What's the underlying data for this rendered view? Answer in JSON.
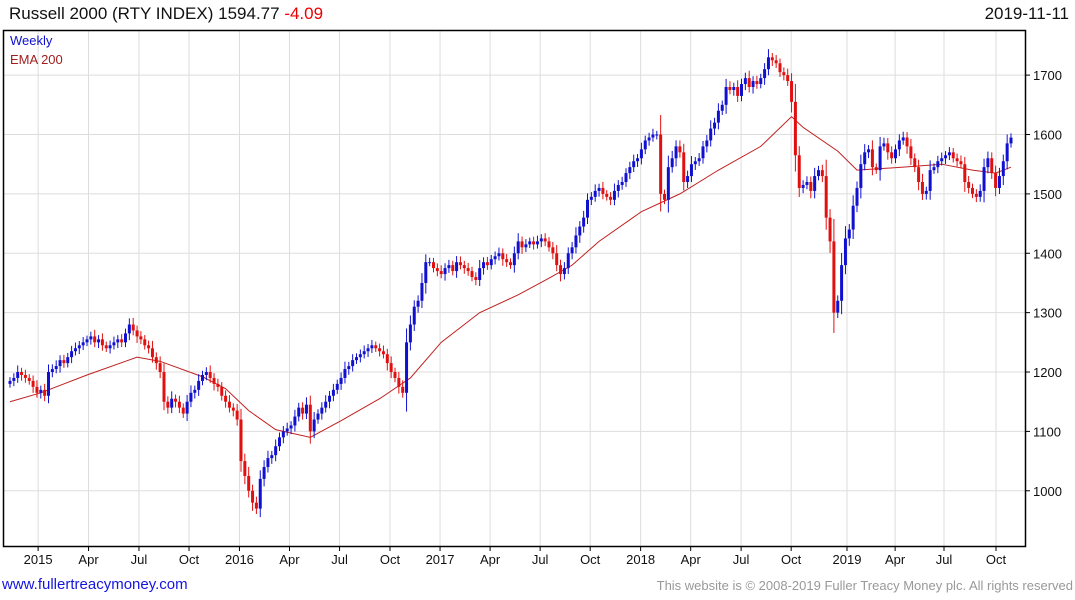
{
  "header": {
    "name": "Russell 2000 (RTY INDEX)",
    "last": "1594.77",
    "change": "-4.09",
    "date": "2019-11-11"
  },
  "footer": {
    "link": "www.fullertreacymoney.com",
    "copyright": "This website is © 2008-2019 Fuller Treacy Money plc. All rights reserved"
  },
  "colors": {
    "up": "#1010d0",
    "down": "#e01010",
    "ema": "#c02020",
    "grid": "#dddddd"
  },
  "chart_data": {
    "type": "candlestick",
    "title": "Russell 2000 (RTY INDEX) 1594.77 -4.09",
    "legend": [
      "Weekly",
      "EMA 200"
    ],
    "legend_placement": "top-left",
    "ylim": [
      907,
      1776
    ],
    "y_ticks": [
      1000,
      1100,
      1200,
      1300,
      1400,
      1500,
      1600,
      1700
    ],
    "xlim_weeks": [
      -2,
      268
    ],
    "x_ticks": [
      {
        "label": "2015",
        "week": 7.3
      },
      {
        "label": "Apr",
        "week": 20.4
      },
      {
        "label": "Jul",
        "week": 33.5
      },
      {
        "label": "Oct",
        "week": 46.5
      },
      {
        "label": "2016",
        "week": 59.6
      },
      {
        "label": "Apr",
        "week": 72.6
      },
      {
        "label": "Jul",
        "week": 85.6
      },
      {
        "label": "Oct",
        "week": 98.7
      },
      {
        "label": "2017",
        "week": 111.7
      },
      {
        "label": "Apr",
        "week": 124.7
      },
      {
        "label": "Jul",
        "week": 137.7
      },
      {
        "label": "Oct",
        "week": 150.7
      },
      {
        "label": "2018",
        "week": 163.8
      },
      {
        "label": "Apr",
        "week": 176.8
      },
      {
        "label": "Jul",
        "week": 189.9
      },
      {
        "label": "Oct",
        "week": 202.9
      },
      {
        "label": "2019",
        "week": 217.4
      },
      {
        "label": "Apr",
        "week": 229.9
      },
      {
        "label": "Jul",
        "week": 242.6
      },
      {
        "label": "Oct",
        "week": 256.1
      }
    ],
    "weekly_close": [
      1185,
      1190,
      1200,
      1195,
      1190,
      1185,
      1175,
      1165,
      1170,
      1160,
      1200,
      1205,
      1210,
      1220,
      1215,
      1225,
      1235,
      1240,
      1245,
      1250,
      1255,
      1260,
      1250,
      1255,
      1245,
      1240,
      1245,
      1250,
      1255,
      1250,
      1265,
      1280,
      1270,
      1260,
      1255,
      1245,
      1240,
      1225,
      1215,
      1200,
      1150,
      1140,
      1155,
      1150,
      1140,
      1130,
      1150,
      1165,
      1170,
      1185,
      1195,
      1200,
      1190,
      1180,
      1175,
      1160,
      1150,
      1140,
      1135,
      1120,
      1050,
      1025,
      1000,
      980,
      970,
      1020,
      1040,
      1055,
      1060,
      1075,
      1090,
      1100,
      1105,
      1110,
      1125,
      1140,
      1130,
      1145,
      1100,
      1120,
      1130,
      1140,
      1150,
      1160,
      1170,
      1180,
      1190,
      1205,
      1210,
      1220,
      1225,
      1230,
      1235,
      1240,
      1245,
      1240,
      1235,
      1230,
      1215,
      1200,
      1190,
      1175,
      1165,
      1250,
      1280,
      1310,
      1320,
      1350,
      1385,
      1385,
      1375,
      1370,
      1365,
      1375,
      1380,
      1370,
      1385,
      1380,
      1375,
      1370,
      1360,
      1355,
      1375,
      1385,
      1380,
      1390,
      1395,
      1400,
      1390,
      1385,
      1380,
      1400,
      1420,
      1410,
      1415,
      1420,
      1415,
      1420,
      1425,
      1420,
      1410,
      1400,
      1380,
      1365,
      1375,
      1400,
      1410,
      1430,
      1445,
      1460,
      1490,
      1495,
      1505,
      1510,
      1500,
      1495,
      1490,
      1505,
      1515,
      1520,
      1535,
      1545,
      1555,
      1560,
      1575,
      1590,
      1595,
      1600,
      1600,
      1500,
      1490,
      1545,
      1560,
      1580,
      1570,
      1520,
      1530,
      1550,
      1555,
      1560,
      1580,
      1590,
      1610,
      1620,
      1640,
      1650,
      1680,
      1675,
      1680,
      1665,
      1685,
      1695,
      1680,
      1690,
      1685,
      1695,
      1710,
      1730,
      1725,
      1720,
      1705,
      1700,
      1690,
      1655,
      1565,
      1510,
      1515,
      1520,
      1505,
      1530,
      1540,
      1530,
      1460,
      1420,
      1300,
      1320,
      1380,
      1425,
      1440,
      1480,
      1510,
      1550,
      1570,
      1575,
      1545,
      1540,
      1580,
      1585,
      1570,
      1560,
      1575,
      1590,
      1595,
      1580,
      1560,
      1545,
      1520,
      1500,
      1505,
      1540,
      1545,
      1555,
      1560,
      1565,
      1570,
      1560,
      1555,
      1550,
      1520,
      1510,
      1500,
      1495,
      1505,
      1545,
      1560,
      1535,
      1510,
      1530,
      1555,
      1585,
      1594.77
    ],
    "ema200": [
      [
        0,
        1150
      ],
      [
        8,
        1165
      ],
      [
        20,
        1195
      ],
      [
        33,
        1225
      ],
      [
        39,
        1218
      ],
      [
        50,
        1192
      ],
      [
        56,
        1172
      ],
      [
        62,
        1135
      ],
      [
        69,
        1103
      ],
      [
        78,
        1090
      ],
      [
        86,
        1118
      ],
      [
        96,
        1155
      ],
      [
        104,
        1190
      ],
      [
        112,
        1250
      ],
      [
        122,
        1300
      ],
      [
        132,
        1330
      ],
      [
        140,
        1358
      ],
      [
        146,
        1380
      ],
      [
        153,
        1420
      ],
      [
        164,
        1470
      ],
      [
        174,
        1500
      ],
      [
        184,
        1540
      ],
      [
        195,
        1580
      ],
      [
        203,
        1630
      ],
      [
        206,
        1612
      ],
      [
        215,
        1572
      ],
      [
        220,
        1540
      ],
      [
        232,
        1545
      ],
      [
        242,
        1550
      ],
      [
        250,
        1540
      ],
      [
        256,
        1535
      ],
      [
        260,
        1545
      ]
    ]
  }
}
